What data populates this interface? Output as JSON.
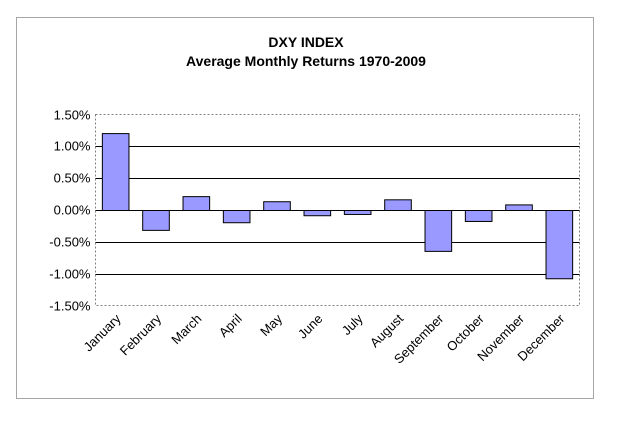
{
  "chart_data": {
    "type": "bar",
    "title": "DXY INDEX",
    "subtitle": "Average Monthly Returns 1970-2009",
    "xlabel": "",
    "ylabel": "",
    "categories": [
      "January",
      "February",
      "March",
      "April",
      "May",
      "June",
      "July",
      "August",
      "September",
      "October",
      "November",
      "December"
    ],
    "values": [
      1.2,
      -0.32,
      0.21,
      -0.2,
      0.13,
      -0.09,
      -0.07,
      0.16,
      -0.65,
      -0.18,
      0.08,
      -1.08
    ],
    "ylim": [
      -1.5,
      1.5
    ],
    "yticks": [
      1.5,
      1.0,
      0.5,
      0.0,
      -0.5,
      -1.0,
      -1.5
    ],
    "ytick_labels": [
      "1.50%",
      "1.00%",
      "0.50%",
      "0.00%",
      "-0.50%",
      "-1.00%",
      "-1.50%"
    ],
    "grid": true,
    "legend": "none",
    "colors": {
      "bar_fill": "#9999ff",
      "bar_stroke": "#000000",
      "plot_background": "#ffffff",
      "gridline": "#000000",
      "outer_border": "#a6a6a6"
    }
  }
}
